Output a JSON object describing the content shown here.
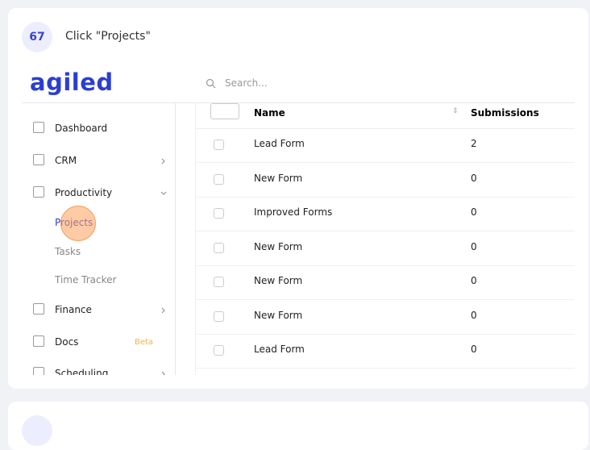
{
  "step": {
    "number": "67",
    "instruction": "Click \"Projects\""
  },
  "app": {
    "logo": "agiled",
    "search_placeholder": "Search...",
    "sidebar": [
      {
        "label": "Dashboard"
      },
      {
        "label": "CRM"
      },
      {
        "label": "Productivity"
      },
      {
        "label": "Projects"
      },
      {
        "label": "Tasks"
      },
      {
        "label": "Time Tracker"
      },
      {
        "label": "Finance"
      },
      {
        "label": "Docs",
        "badge": "Beta"
      },
      {
        "label": "Scheduling"
      }
    ],
    "table": {
      "columns": [
        "Name",
        "Submissions"
      ],
      "rows": [
        [
          "Lead Form",
          2
        ],
        [
          "New Form",
          0
        ],
        [
          "Improved Forms",
          0
        ],
        [
          "New Form",
          0
        ],
        [
          "New Form",
          0
        ],
        [
          "New Form",
          0
        ],
        [
          "Lead Form",
          0
        ]
      ]
    }
  }
}
